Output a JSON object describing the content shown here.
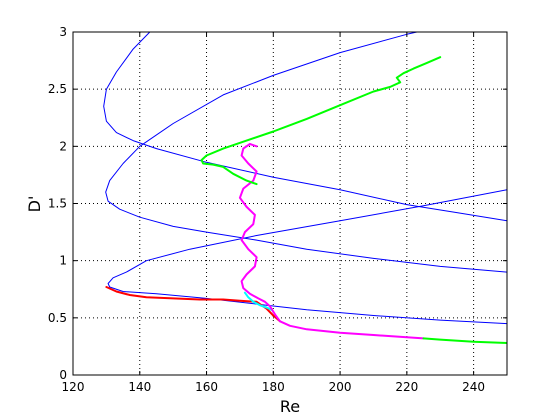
{
  "chart_data": {
    "type": "line",
    "title": "",
    "xlabel": "Re",
    "ylabel": "D'",
    "xlim": [
      120,
      250
    ],
    "ylim": [
      0,
      3
    ],
    "grid": true,
    "legend": "none",
    "x_ticks": [
      "120",
      "140",
      "160",
      "180",
      "200",
      "220",
      "240"
    ],
    "y_ticks": [
      "0",
      "0.5",
      "1",
      "1.5",
      "2",
      "2.5",
      "3"
    ],
    "series": [
      {
        "color": "#0000ff",
        "width": 1,
        "points": [
          [
            143,
            3.0
          ],
          [
            138,
            2.85
          ],
          [
            133,
            2.65
          ],
          [
            130,
            2.5
          ],
          [
            129.2,
            2.35
          ],
          [
            130,
            2.22
          ],
          [
            133,
            2.12
          ],
          [
            138,
            2.05
          ],
          [
            145,
            1.98
          ],
          [
            160,
            1.86
          ],
          [
            180,
            1.73
          ],
          [
            200,
            1.62
          ],
          [
            220,
            1.49
          ],
          [
            235,
            1.42
          ],
          [
            250,
            1.35
          ]
        ]
      },
      {
        "color": "#0000ff",
        "width": 1,
        "points": [
          [
            250,
            0.9
          ],
          [
            230,
            0.95
          ],
          [
            210,
            1.02
          ],
          [
            190,
            1.1
          ],
          [
            175,
            1.18
          ],
          [
            160,
            1.25
          ],
          [
            150,
            1.3
          ],
          [
            140,
            1.38
          ],
          [
            134,
            1.45
          ],
          [
            130.5,
            1.52
          ],
          [
            129.8,
            1.6
          ],
          [
            131,
            1.7
          ],
          [
            135,
            1.85
          ],
          [
            140,
            2.0
          ],
          [
            150,
            2.2
          ],
          [
            165,
            2.45
          ],
          [
            180,
            2.62
          ],
          [
            200,
            2.82
          ],
          [
            220,
            2.98
          ],
          [
            223,
            3.0
          ]
        ]
      },
      {
        "color": "#0000ff",
        "width": 1,
        "points": [
          [
            250,
            0.45
          ],
          [
            230,
            0.48
          ],
          [
            210,
            0.52
          ],
          [
            190,
            0.57
          ],
          [
            175,
            0.62
          ],
          [
            160,
            0.67
          ],
          [
            145,
            0.71
          ],
          [
            135,
            0.73
          ],
          [
            131,
            0.77
          ],
          [
            130.5,
            0.8
          ],
          [
            132,
            0.85
          ],
          [
            136,
            0.9
          ],
          [
            142,
            1.0
          ],
          [
            155,
            1.1
          ],
          [
            175,
            1.22
          ],
          [
            200,
            1.35
          ],
          [
            225,
            1.48
          ],
          [
            250,
            1.62
          ]
        ]
      },
      {
        "color": "#ff0000",
        "width": 2,
        "points": [
          [
            130,
            0.77
          ],
          [
            133,
            0.73
          ],
          [
            137,
            0.7
          ],
          [
            142,
            0.68
          ],
          [
            150,
            0.67
          ],
          [
            158,
            0.66
          ],
          [
            165,
            0.66
          ],
          [
            170,
            0.65
          ],
          [
            175,
            0.64
          ],
          [
            178,
            0.58
          ],
          [
            180,
            0.52
          ],
          [
            182,
            0.47
          ]
        ]
      },
      {
        "color": "#00ffff",
        "width": 2,
        "points": [
          [
            171.5,
            0.72
          ],
          [
            172.5,
            0.68
          ],
          [
            174,
            0.64
          ],
          [
            176,
            0.61
          ],
          [
            178,
            0.59
          ],
          [
            179.5,
            0.57
          ]
        ]
      },
      {
        "color": "#ff00ff",
        "width": 2,
        "points": [
          [
            175,
            2.0
          ],
          [
            173,
            2.02
          ],
          [
            171,
            1.98
          ],
          [
            170.5,
            1.92
          ],
          [
            172.5,
            1.85
          ],
          [
            175,
            1.78
          ],
          [
            174,
            1.7
          ],
          [
            171,
            1.63
          ],
          [
            170,
            1.55
          ],
          [
            172,
            1.47
          ],
          [
            174.5,
            1.4
          ],
          [
            174,
            1.32
          ],
          [
            171.5,
            1.25
          ],
          [
            170.5,
            1.18
          ],
          [
            172.5,
            1.1
          ],
          [
            175,
            1.03
          ],
          [
            174.5,
            0.95
          ],
          [
            172,
            0.88
          ],
          [
            170.5,
            0.82
          ],
          [
            171,
            0.76
          ],
          [
            173,
            0.71
          ],
          [
            175.5,
            0.67
          ],
          [
            177.5,
            0.64
          ],
          [
            179,
            0.6
          ],
          [
            180.5,
            0.53
          ],
          [
            182,
            0.47
          ],
          [
            185,
            0.43
          ],
          [
            190,
            0.4
          ],
          [
            200,
            0.37
          ],
          [
            210,
            0.35
          ],
          [
            220,
            0.33
          ],
          [
            225,
            0.32
          ]
        ]
      },
      {
        "color": "#00ff00",
        "width": 2,
        "points": [
          [
            225,
            0.32
          ],
          [
            230,
            0.31
          ],
          [
            240,
            0.29
          ],
          [
            250,
            0.28
          ]
        ]
      },
      {
        "color": "#00ff00",
        "width": 2,
        "points": [
          [
            175,
            1.67
          ],
          [
            172,
            1.7
          ],
          [
            168,
            1.76
          ],
          [
            165,
            1.82
          ],
          [
            162,
            1.84
          ],
          [
            159,
            1.85
          ],
          [
            158.5,
            1.88
          ],
          [
            160,
            1.92
          ],
          [
            165,
            1.98
          ],
          [
            172,
            2.05
          ],
          [
            180,
            2.13
          ],
          [
            190,
            2.24
          ],
          [
            200,
            2.36
          ],
          [
            210,
            2.48
          ],
          [
            215,
            2.52
          ],
          [
            218,
            2.56
          ],
          [
            217,
            2.6
          ],
          [
            219,
            2.64
          ],
          [
            222,
            2.68
          ],
          [
            226,
            2.73
          ],
          [
            230,
            2.78
          ]
        ]
      }
    ]
  }
}
